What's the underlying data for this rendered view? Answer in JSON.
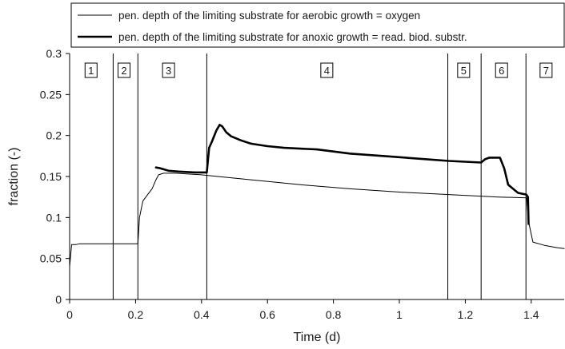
{
  "chart_data": {
    "type": "line",
    "xlabel": "Time (d)",
    "ylabel": "fraction (-)",
    "xlim": [
      0,
      1.5
    ],
    "ylim": [
      0,
      0.3
    ],
    "xticks": [
      0,
      0.2,
      0.4,
      0.6,
      0.8,
      1,
      1.2,
      1.4
    ],
    "xtick_labels": [
      "0",
      "0.2",
      "0.4",
      "0.6",
      "0.8",
      "1",
      "1.2",
      "1.4"
    ],
    "yticks": [
      0,
      0.05,
      0.1,
      0.15,
      0.2,
      0.25,
      0.3
    ],
    "ytick_labels": [
      "0",
      "0.05",
      "0.1",
      "0.15",
      "0.2",
      "0.25",
      "0.3"
    ],
    "grid": false,
    "legend_position": "top",
    "phase_boundaries": [
      0.132,
      0.207,
      0.416,
      1.147,
      1.248,
      1.384
    ],
    "phases": [
      {
        "label": "1",
        "x": 0.065
      },
      {
        "label": "2",
        "x": 0.165
      },
      {
        "label": "3",
        "x": 0.3
      },
      {
        "label": "4",
        "x": 0.78
      },
      {
        "label": "5",
        "x": 1.195
      },
      {
        "label": "6",
        "x": 1.31
      },
      {
        "label": "7",
        "x": 1.445
      }
    ],
    "series": [
      {
        "name": "pen. depth of the limiting substrate for aerobic growth = oxygen",
        "line_weight": "thin",
        "points": [
          [
            0,
            0.04
          ],
          [
            0.006,
            0.067
          ],
          [
            0.02,
            0.067
          ],
          [
            0.03,
            0.068
          ],
          [
            0.1,
            0.068
          ],
          [
            0.207,
            0.068
          ],
          [
            0.212,
            0.1
          ],
          [
            0.222,
            0.12
          ],
          [
            0.235,
            0.127
          ],
          [
            0.25,
            0.135
          ],
          [
            0.262,
            0.146
          ],
          [
            0.27,
            0.152
          ],
          [
            0.285,
            0.154
          ],
          [
            0.32,
            0.154
          ],
          [
            0.4,
            0.152
          ],
          [
            0.45,
            0.15
          ],
          [
            0.55,
            0.146
          ],
          [
            0.7,
            0.14
          ],
          [
            0.85,
            0.135
          ],
          [
            1.0,
            0.131
          ],
          [
            1.15,
            0.128
          ],
          [
            1.3,
            0.125
          ],
          [
            1.386,
            0.124
          ],
          [
            1.392,
            0.095
          ],
          [
            1.405,
            0.07
          ],
          [
            1.44,
            0.066
          ],
          [
            1.48,
            0.063
          ],
          [
            1.5,
            0.062
          ]
        ]
      },
      {
        "name": "pen. depth of the limiting substrate for anoxic growth = read. biod. substr.",
        "line_weight": "thick",
        "points": [
          [
            0.262,
            0.161
          ],
          [
            0.275,
            0.16
          ],
          [
            0.3,
            0.157
          ],
          [
            0.33,
            0.156
          ],
          [
            0.38,
            0.155
          ],
          [
            0.416,
            0.155
          ],
          [
            0.423,
            0.185
          ],
          [
            0.432,
            0.193
          ],
          [
            0.445,
            0.206
          ],
          [
            0.455,
            0.213
          ],
          [
            0.463,
            0.211
          ],
          [
            0.475,
            0.204
          ],
          [
            0.49,
            0.199
          ],
          [
            0.52,
            0.194
          ],
          [
            0.55,
            0.19
          ],
          [
            0.6,
            0.187
          ],
          [
            0.65,
            0.185
          ],
          [
            0.75,
            0.183
          ],
          [
            0.85,
            0.178
          ],
          [
            0.95,
            0.175
          ],
          [
            1.05,
            0.172
          ],
          [
            1.15,
            0.169
          ],
          [
            1.248,
            0.167
          ],
          [
            1.26,
            0.171
          ],
          [
            1.273,
            0.173
          ],
          [
            1.305,
            0.173
          ],
          [
            1.318,
            0.16
          ],
          [
            1.33,
            0.14
          ],
          [
            1.345,
            0.135
          ],
          [
            1.36,
            0.13
          ],
          [
            1.385,
            0.128
          ],
          [
            1.39,
            0.125
          ],
          [
            1.392,
            0.092
          ]
        ]
      }
    ]
  }
}
